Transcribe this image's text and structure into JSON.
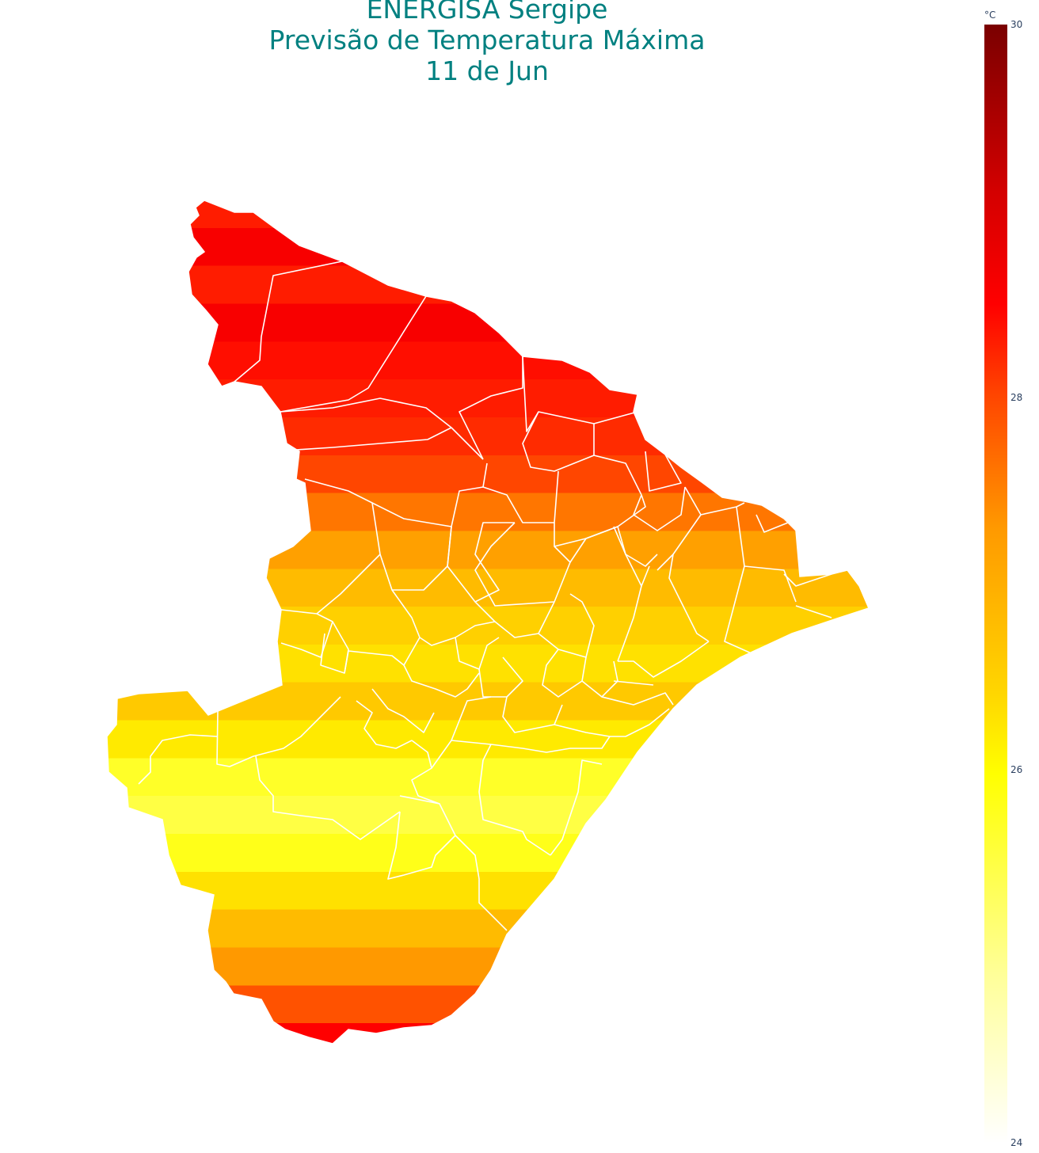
{
  "title": {
    "line1": "ENERGISA Sergipe",
    "line2": "Previsão de Temperatura Máxima",
    "line3": "11 de Jun"
  },
  "colorbar": {
    "unit": "°C",
    "min": 24,
    "max": 30,
    "ticks": [
      "30",
      "28",
      "26",
      "24"
    ],
    "tick_values": [
      30,
      28,
      26,
      24
    ],
    "colorscale": [
      [
        0.0,
        "#ffffff"
      ],
      [
        0.15,
        "#ffff99"
      ],
      [
        0.27,
        "#ffff33"
      ],
      [
        0.33,
        "#ffff00"
      ],
      [
        0.4,
        "#ffd700"
      ],
      [
        0.55,
        "#ff9900"
      ],
      [
        0.67,
        "#ff4400"
      ],
      [
        0.75,
        "#ff0000"
      ],
      [
        0.85,
        "#d40000"
      ],
      [
        1.0,
        "#7a0000"
      ]
    ]
  },
  "map": {
    "boundary_color": "#ffffff",
    "temperature_bands": [
      28.3,
      28.6,
      28.3,
      28.6,
      28.4,
      28.3,
      28.2,
      28.0,
      27.6,
      27.2,
      26.8,
      26.5,
      26.3,
      26.6,
      26.2,
      25.7,
      25.5,
      25.8,
      26.3,
      26.8,
      27.3,
      27.9,
      28.5
    ]
  }
}
